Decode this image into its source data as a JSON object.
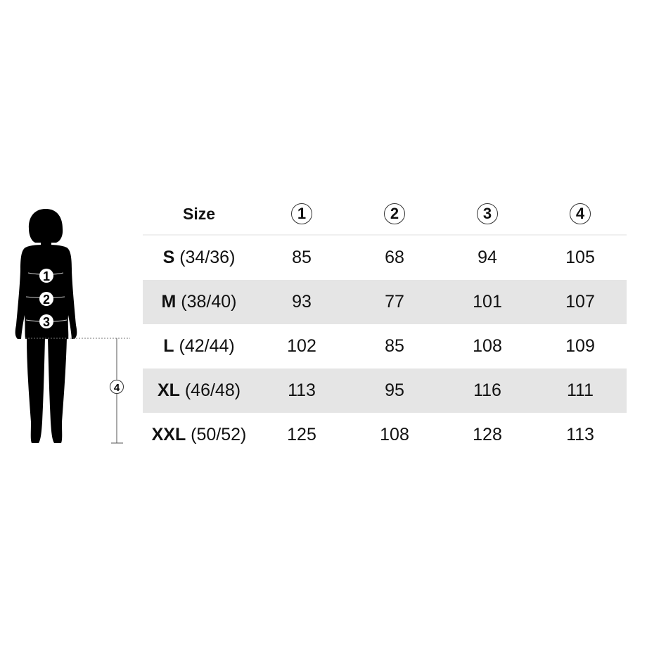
{
  "figure": {
    "markers": [
      "1",
      "2",
      "3"
    ],
    "length_marker": "4"
  },
  "table": {
    "header": {
      "size": "Size",
      "cols": [
        "1",
        "2",
        "3",
        "4"
      ]
    },
    "rows": [
      {
        "size": "S",
        "eu": "(34/36)",
        "values": [
          "85",
          "68",
          "94",
          "105"
        ]
      },
      {
        "size": "M",
        "eu": "(38/40)",
        "values": [
          "93",
          "77",
          "101",
          "107"
        ]
      },
      {
        "size": "L",
        "eu": "(42/44)",
        "values": [
          "102",
          "85",
          "108",
          "109"
        ]
      },
      {
        "size": "XL",
        "eu": "(46/48)",
        "values": [
          "113",
          "95",
          "116",
          "111"
        ]
      },
      {
        "size": "XXL",
        "eu": "(50/52)",
        "values": [
          "125",
          "108",
          "128",
          "113"
        ]
      }
    ],
    "stripe_color": "#e5e5e5"
  }
}
